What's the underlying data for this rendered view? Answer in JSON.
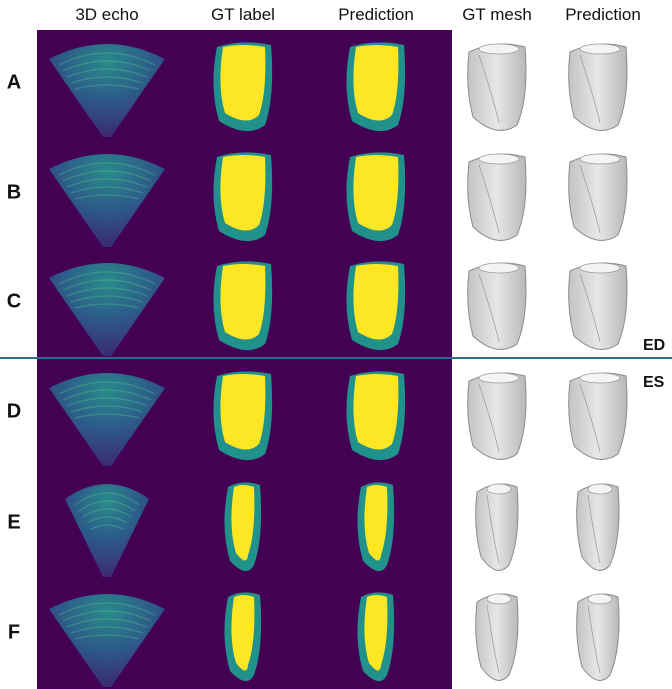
{
  "header": {
    "columns": [
      "3D echo",
      "GT label",
      "Prediction",
      "GT mesh",
      "Prediction"
    ]
  },
  "rows": [
    "A",
    "B",
    "C",
    "D",
    "E",
    "F"
  ],
  "phases": [
    "ED",
    "ES"
  ]
}
